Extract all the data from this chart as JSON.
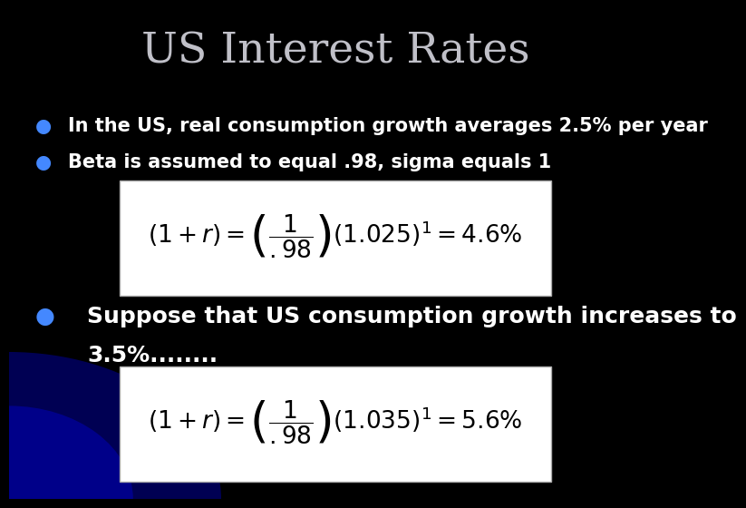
{
  "title": "US Interest Rates",
  "title_color": "#c0c0c8",
  "title_fontsize": 34,
  "background_color": "#000000",
  "bullet_color": "#ffffff",
  "bullet_fontsize": 15,
  "bullet1": "In the US, real consumption growth averages 2.5% per year",
  "bullet2": "Beta is assumed to equal .98, sigma equals 1",
  "bullet3_line1": "Suppose that US consumption growth increases to",
  "bullet3_line2": "3.5%........",
  "formula1": "$(1+r) = \\left(\\dfrac{1}{.98}\\right)(1.025)^1 = 4.6\\%$",
  "formula2": "$(1+r) = \\left(\\dfrac{1}{.98}\\right)(1.035)^1 = 5.6\\%$",
  "formula_box_color": "#ffffff",
  "formula_text_color": "#000000",
  "formula_fontsize": 17,
  "bullet_dot_color": "#4488ff"
}
